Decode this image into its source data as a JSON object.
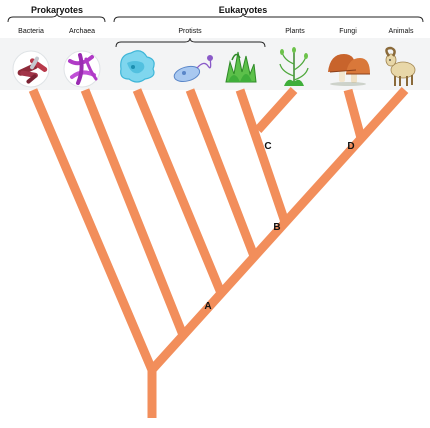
{
  "groups": {
    "prokaryotes": "Prokaryotes",
    "eukaryotes": "Eukaryotes",
    "protists": "Protists"
  },
  "taxa": [
    "Bacteria",
    "Archaea",
    "Plants",
    "Fungi",
    "Animals"
  ],
  "nodes": [
    "A",
    "B",
    "C",
    "D"
  ],
  "colors": {
    "branch": "#f28e5b",
    "header_band": "#eef0f1",
    "bacteria": "#8e2b3a",
    "archaea": "#b03ac6",
    "protist": "#3fb6d8",
    "plant": "#3fae3a",
    "fungi": "#c8642c",
    "animal": "#d9c38a"
  },
  "icons": [
    "bacteria-icon",
    "archaea-icon",
    "amoeba-icon",
    "flagellate-icon",
    "algae-icon",
    "plant-icon",
    "mushroom-icon",
    "goat-icon"
  ]
}
